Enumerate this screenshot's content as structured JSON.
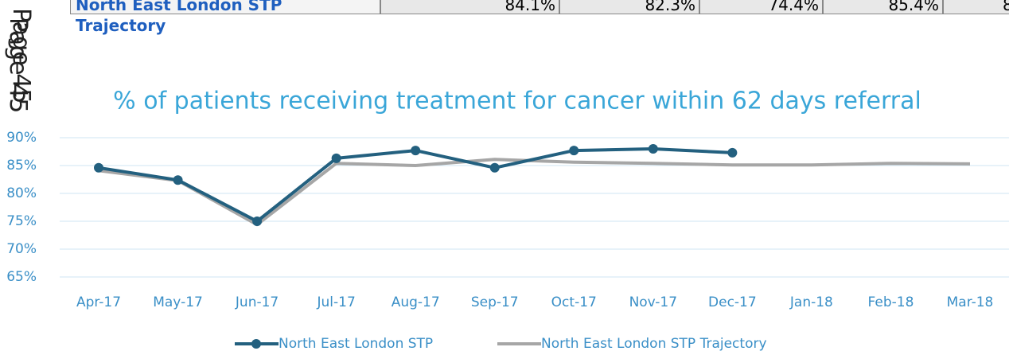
{
  "table": {
    "rows": [
      [
        "North East London STP Trajectory",
        "84.1%",
        "82.3%",
        "74.4%",
        "85.4%",
        "8"
      ]
    ]
  },
  "page_label": [
    "Page 45",
    "Page 45"
  ],
  "chart_data": {
    "type": "line",
    "title": "% of patients receiving treatment for cancer within 62 days referral",
    "categories": [
      "Apr-17",
      "May-17",
      "Jun-17",
      "Jul-17",
      "Aug-17",
      "Sep-17",
      "Oct-17",
      "Nov-17",
      "Dec-17",
      "Jan-18",
      "Feb-18",
      "Mar-18"
    ],
    "series": [
      {
        "name": "North East London STP",
        "color": "#23607f",
        "values": [
          84.6,
          82.4,
          75.0,
          86.3,
          87.7,
          84.6,
          87.7,
          88.0,
          87.3,
          null,
          null,
          null
        ],
        "markers": true
      },
      {
        "name": "North East London STP Trajectory",
        "color": "#a6a6a6",
        "values": [
          84.1,
          82.3,
          74.4,
          85.4,
          85.0,
          86.1,
          85.6,
          85.4,
          85.1,
          85.1,
          85.4,
          85.3
        ],
        "markers": false
      }
    ],
    "ylim": [
      65,
      90
    ],
    "yticks": [
      {
        "value": 65,
        "label": "65%"
      },
      {
        "value": 70,
        "label": "70%"
      },
      {
        "value": 75,
        "label": "75%"
      },
      {
        "value": 80,
        "label": "80%"
      },
      {
        "value": 85,
        "label": "85%"
      },
      {
        "value": 90,
        "label": "90%"
      }
    ],
    "grid": true,
    "legend": "bottom"
  }
}
